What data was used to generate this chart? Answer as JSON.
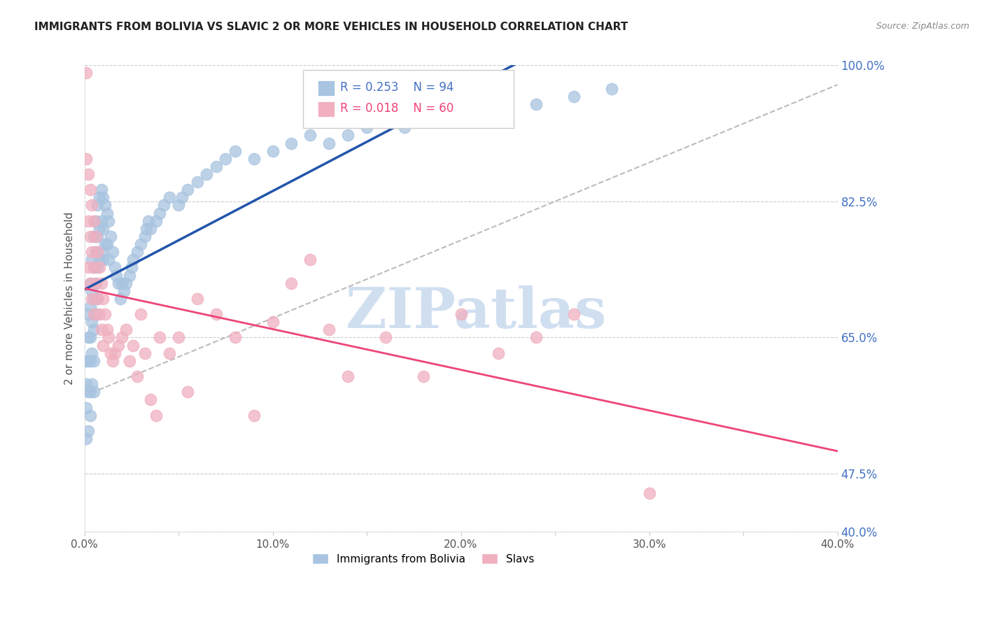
{
  "title": "IMMIGRANTS FROM BOLIVIA VS SLAVIC 2 OR MORE VEHICLES IN HOUSEHOLD CORRELATION CHART",
  "source": "Source: ZipAtlas.com",
  "ylabel": "2 or more Vehicles in Household",
  "xlim": [
    0.0,
    0.4
  ],
  "ylim": [
    0.4,
    1.0
  ],
  "ytick_labels_right": [
    "100.0%",
    "82.5%",
    "65.0%",
    "47.5%",
    "40.0%"
  ],
  "ytick_vals_right": [
    1.0,
    0.825,
    0.65,
    0.475,
    0.4
  ],
  "xtick_labels": [
    "0.0%",
    "",
    "10.0%",
    "",
    "20.0%",
    "",
    "30.0%",
    "",
    "40.0%"
  ],
  "xtick_vals": [
    0.0,
    0.05,
    0.1,
    0.15,
    0.2,
    0.25,
    0.3,
    0.35,
    0.4
  ],
  "grid_color": "#cccccc",
  "background_color": "#ffffff",
  "blue_color": "#a8c4e0",
  "pink_color": "#f0b0c0",
  "blue_line_color": "#2255aa",
  "pink_line_color": "#ee4477",
  "diagonal_color": "#aaaaaa",
  "watermark": "ZIPatlas",
  "watermark_color": "#d0dff0",
  "legend_R1": "R = 0.253",
  "legend_N1": "N = 94",
  "legend_R2": "R = 0.018",
  "legend_N2": "N = 60",
  "legend_label1": "Immigrants from Bolivia",
  "legend_label2": "Slavs",
  "blue_x": [
    0.001,
    0.001,
    0.001,
    0.001,
    0.002,
    0.002,
    0.002,
    0.002,
    0.002,
    0.003,
    0.003,
    0.003,
    0.003,
    0.003,
    0.003,
    0.004,
    0.004,
    0.004,
    0.004,
    0.004,
    0.005,
    0.005,
    0.005,
    0.005,
    0.005,
    0.005,
    0.006,
    0.006,
    0.006,
    0.006,
    0.007,
    0.007,
    0.007,
    0.007,
    0.008,
    0.008,
    0.008,
    0.009,
    0.009,
    0.009,
    0.01,
    0.01,
    0.01,
    0.011,
    0.011,
    0.012,
    0.012,
    0.013,
    0.013,
    0.014,
    0.015,
    0.016,
    0.017,
    0.018,
    0.019,
    0.02,
    0.021,
    0.022,
    0.024,
    0.025,
    0.026,
    0.028,
    0.03,
    0.032,
    0.033,
    0.034,
    0.035,
    0.038,
    0.04,
    0.042,
    0.045,
    0.05,
    0.052,
    0.055,
    0.06,
    0.065,
    0.07,
    0.075,
    0.08,
    0.09,
    0.1,
    0.11,
    0.12,
    0.13,
    0.14,
    0.15,
    0.16,
    0.17,
    0.18,
    0.2,
    0.22,
    0.24,
    0.26,
    0.28
  ],
  "blue_y": [
    0.62,
    0.59,
    0.56,
    0.52,
    0.68,
    0.65,
    0.62,
    0.58,
    0.53,
    0.72,
    0.69,
    0.65,
    0.62,
    0.58,
    0.55,
    0.75,
    0.71,
    0.67,
    0.63,
    0.59,
    0.78,
    0.74,
    0.7,
    0.66,
    0.62,
    0.58,
    0.8,
    0.76,
    0.72,
    0.68,
    0.82,
    0.78,
    0.74,
    0.7,
    0.83,
    0.79,
    0.75,
    0.84,
    0.8,
    0.76,
    0.83,
    0.79,
    0.75,
    0.82,
    0.77,
    0.81,
    0.77,
    0.8,
    0.75,
    0.78,
    0.76,
    0.74,
    0.73,
    0.72,
    0.7,
    0.72,
    0.71,
    0.72,
    0.73,
    0.74,
    0.75,
    0.76,
    0.77,
    0.78,
    0.79,
    0.8,
    0.79,
    0.8,
    0.81,
    0.82,
    0.83,
    0.82,
    0.83,
    0.84,
    0.85,
    0.86,
    0.87,
    0.88,
    0.89,
    0.88,
    0.89,
    0.9,
    0.91,
    0.9,
    0.91,
    0.92,
    0.93,
    0.92,
    0.93,
    0.93,
    0.94,
    0.95,
    0.96,
    0.97
  ],
  "pink_x": [
    0.001,
    0.001,
    0.002,
    0.002,
    0.002,
    0.003,
    0.003,
    0.003,
    0.004,
    0.004,
    0.004,
    0.005,
    0.005,
    0.005,
    0.006,
    0.006,
    0.007,
    0.007,
    0.008,
    0.008,
    0.009,
    0.009,
    0.01,
    0.01,
    0.011,
    0.012,
    0.013,
    0.014,
    0.015,
    0.016,
    0.018,
    0.02,
    0.022,
    0.024,
    0.026,
    0.028,
    0.03,
    0.032,
    0.035,
    0.038,
    0.04,
    0.045,
    0.05,
    0.055,
    0.06,
    0.07,
    0.08,
    0.09,
    0.1,
    0.11,
    0.12,
    0.13,
    0.14,
    0.16,
    0.18,
    0.2,
    0.22,
    0.24,
    0.26,
    0.3
  ],
  "pink_y": [
    0.99,
    0.88,
    0.86,
    0.8,
    0.74,
    0.84,
    0.78,
    0.72,
    0.82,
    0.76,
    0.7,
    0.8,
    0.74,
    0.68,
    0.78,
    0.72,
    0.76,
    0.7,
    0.74,
    0.68,
    0.72,
    0.66,
    0.7,
    0.64,
    0.68,
    0.66,
    0.65,
    0.63,
    0.62,
    0.63,
    0.64,
    0.65,
    0.66,
    0.62,
    0.64,
    0.6,
    0.68,
    0.63,
    0.57,
    0.55,
    0.65,
    0.63,
    0.65,
    0.58,
    0.7,
    0.68,
    0.65,
    0.55,
    0.67,
    0.72,
    0.75,
    0.66,
    0.6,
    0.65,
    0.6,
    0.68,
    0.63,
    0.65,
    0.68,
    0.45
  ]
}
